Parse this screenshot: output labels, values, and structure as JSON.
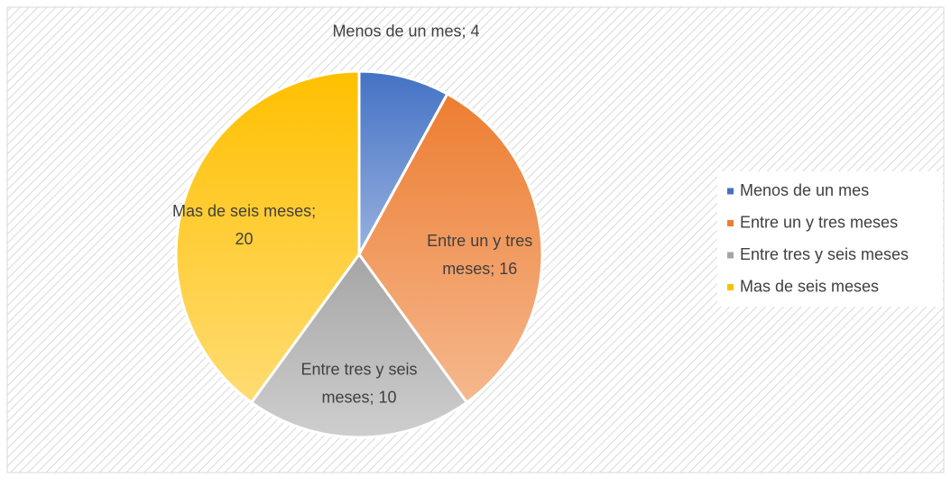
{
  "chart_data": {
    "type": "pie",
    "categories": [
      "Menos de un mes",
      "Entre un y tres meses",
      "Entre tres y seis meses",
      "Mas de seis meses"
    ],
    "values": [
      4,
      16,
      10,
      20
    ],
    "value_labels": [
      "Menos de un mes; 4",
      "Entre un y tres meses; 16",
      "Entre tres y seis meses; 10",
      "Mas de seis meses; 20"
    ],
    "colors": [
      "#4472c4",
      "#ed7d31",
      "#a5a5a5",
      "#ffc000"
    ],
    "legend": "right"
  }
}
